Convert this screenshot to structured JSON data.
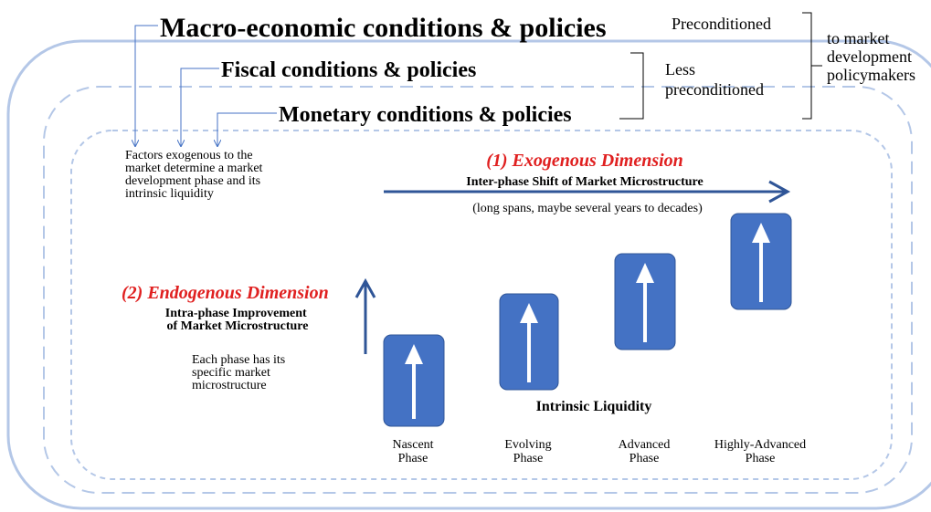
{
  "header": {
    "macro": "Macro-economic conditions & policies",
    "fiscal": "Fiscal conditions & policies",
    "monetary": "Monetary conditions & policies",
    "preconditioned": "Preconditioned",
    "less_preconditioned": [
      "Less",
      "preconditioned"
    ],
    "policymakers": [
      "to market",
      "development",
      "policymakers"
    ]
  },
  "factors_note": [
    "Factors exogenous to the",
    "market determine a market",
    "development phase and its",
    "intrinsic liquidity"
  ],
  "exogenous": {
    "title": "(1) Exogenous Dimension",
    "subtitle": "Inter-phase Shift of Market Microstructure",
    "note": "(long spans, maybe several years to decades)"
  },
  "endogenous": {
    "title": "(2) Endogenous Dimension",
    "subtitle": [
      "Intra-phase Improvement",
      "of Market Microstructure"
    ],
    "note": [
      "Each phase has its",
      "specific market",
      "microstructure"
    ]
  },
  "liquidity_label": "Intrinsic Liquidity",
  "phases": [
    {
      "lines": [
        "Nascent",
        "Phase"
      ]
    },
    {
      "lines": [
        "Evolving",
        "Phase"
      ]
    },
    {
      "lines": [
        "Advanced",
        "Phase"
      ]
    },
    {
      "lines": [
        "Highly-Advanced",
        "Phase"
      ]
    }
  ]
}
